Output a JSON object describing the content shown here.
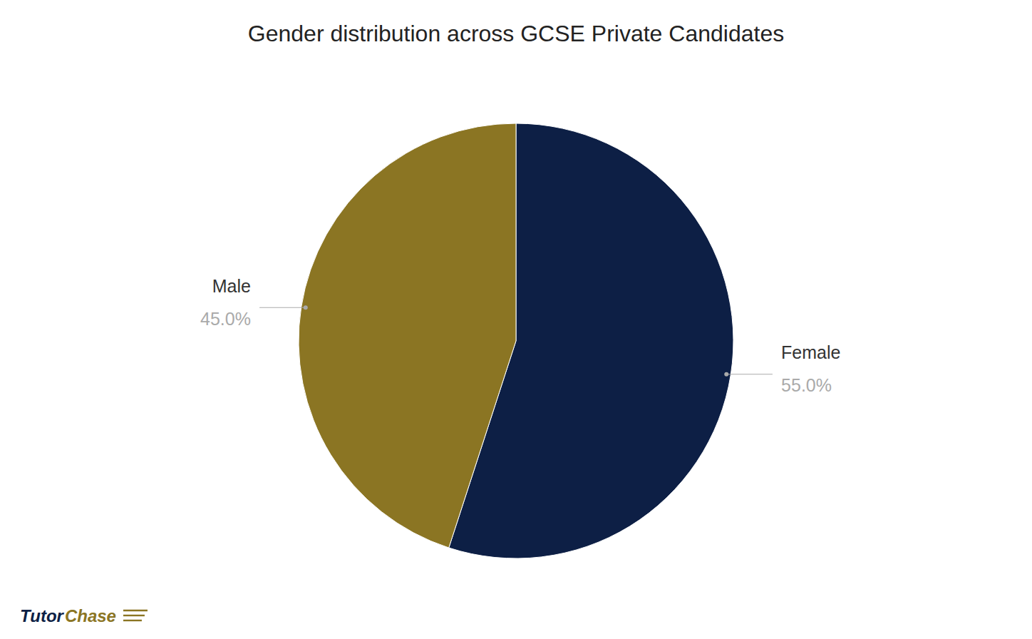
{
  "chart_data": {
    "type": "pie",
    "title": "Gender distribution across GCSE Private Candidates",
    "categories": [
      "Female",
      "Male"
    ],
    "values": [
      55.0,
      45.0
    ],
    "value_labels": [
      "55.0%",
      "45.0%"
    ],
    "colors": [
      "#0d1f45",
      "#8b7523"
    ],
    "data_labels": true,
    "annotations": [
      {
        "text": "Tutor",
        "color": "#0d1f45"
      },
      {
        "text": "Chase",
        "color": "#8b7523"
      }
    ]
  }
}
